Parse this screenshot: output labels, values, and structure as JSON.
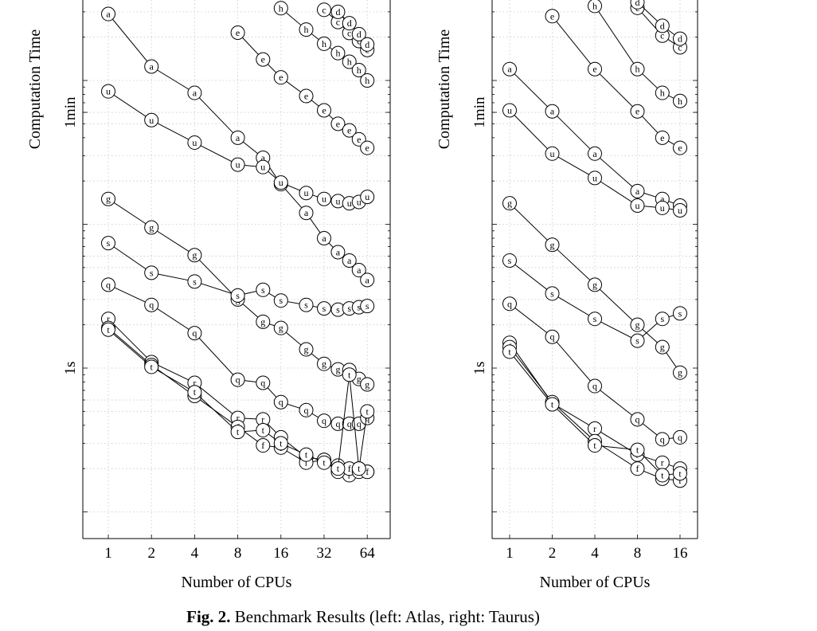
{
  "caption": {
    "label": "Fig. 2.",
    "text": "Benchmark Results (left: Atlas, right: Taurus)"
  },
  "chart_data": [
    {
      "type": "line",
      "panel": "left",
      "xlabel": "Number of CPUs",
      "ylabel": "Computation Time",
      "x_scale": "log2",
      "y_scale": "log",
      "x_ticks": [
        1,
        2,
        4,
        8,
        16,
        32,
        64
      ],
      "y_tick_labels": [
        {
          "value": 60,
          "label": "1min"
        },
        {
          "value": 1,
          "label": "1s"
        }
      ],
      "ylim_seconds": [
        0.1,
        300
      ],
      "grid": true,
      "x": [
        1,
        2,
        4,
        8,
        12,
        16,
        24,
        32,
        40,
        48,
        56,
        64
      ],
      "series": [
        {
          "name": "a",
          "values": [
            290,
            125,
            82,
            40,
            29,
            19,
            12,
            8.0,
            6.4,
            5.6,
            4.8,
            4.1
          ]
        },
        {
          "name": "u",
          "values": [
            84,
            53,
            37,
            26,
            25,
            19.5,
            16.5,
            15,
            14.5,
            14,
            14.3,
            15.5
          ]
        },
        {
          "name": "g",
          "values": [
            15,
            9.5,
            6.1,
            3.0,
            2.1,
            1.9,
            1.35,
            1.07,
            0.98,
            0.97,
            0.84,
            0.77
          ]
        },
        {
          "name": "s",
          "values": [
            7.4,
            4.6,
            4.0,
            3.2,
            3.5,
            2.95,
            2.75,
            2.6,
            2.55,
            2.6,
            2.65,
            2.7
          ]
        },
        {
          "name": "q",
          "values": [
            3.8,
            2.75,
            1.75,
            0.83,
            0.79,
            0.58,
            0.51,
            0.43,
            0.41,
            0.41,
            0.41,
            0.45
          ]
        },
        {
          "name": "r",
          "values": [
            2.2,
            1.1,
            0.79,
            0.45,
            0.44,
            0.33,
            0.24,
            0.23,
            0.21,
            0.18,
            0.2,
            0.19
          ]
        },
        {
          "name": "f",
          "values": [
            1.9,
            1.05,
            0.64,
            0.39,
            0.29,
            0.28,
            0.22,
            0.23,
            0.19,
            0.2,
            0.19,
            0.19
          ]
        },
        {
          "name": "t",
          "values": [
            1.85,
            1.02,
            0.68,
            0.36,
            0.37,
            0.3,
            0.25,
            0.22,
            0.2,
            0.9,
            0.2,
            0.5
          ]
        },
        {
          "name": "e",
          "values": [
            null,
            null,
            null,
            215,
            140,
            105,
            78,
            62,
            50,
            45,
            39,
            34
          ]
        },
        {
          "name": "h",
          "values": [
            null,
            null,
            null,
            null,
            null,
            318,
            226,
            180,
            155,
            135,
            118,
            100
          ]
        },
        {
          "name": "c",
          "values": [
            null,
            null,
            null,
            null,
            null,
            null,
            null,
            310,
            255,
            214,
            188,
            163
          ]
        },
        {
          "name": "d",
          "values": [
            null,
            null,
            null,
            null,
            null,
            null,
            null,
            null,
            300,
            250,
            210,
            178
          ]
        }
      ]
    },
    {
      "type": "line",
      "panel": "right",
      "xlabel": "Number of CPUs",
      "ylabel": "Computation Time",
      "x_scale": "log2",
      "y_scale": "log",
      "x_ticks": [
        1,
        2,
        4,
        8,
        16
      ],
      "y_tick_labels": [
        {
          "value": 60,
          "label": "1min"
        },
        {
          "value": 1,
          "label": "1s"
        }
      ],
      "ylim_seconds": [
        0.1,
        300
      ],
      "grid": true,
      "x": [
        1,
        2,
        4,
        8,
        12,
        16
      ],
      "series": [
        {
          "name": "a",
          "values": [
            120,
            61,
            31,
            17,
            15,
            13.5
          ]
        },
        {
          "name": "u",
          "values": [
            62,
            31,
            21,
            13.5,
            13,
            12.5
          ]
        },
        {
          "name": "g",
          "values": [
            14,
            7.2,
            3.8,
            2.0,
            1.4,
            0.93
          ]
        },
        {
          "name": "s",
          "values": [
            5.6,
            3.3,
            2.2,
            1.55,
            2.2,
            2.4
          ]
        },
        {
          "name": "q",
          "values": [
            2.8,
            1.65,
            0.75,
            0.44,
            0.32,
            0.33
          ]
        },
        {
          "name": "r",
          "values": [
            1.5,
            0.57,
            0.38,
            0.25,
            0.22,
            0.2
          ]
        },
        {
          "name": "f",
          "values": [
            1.4,
            0.58,
            0.31,
            0.2,
            0.17,
            0.165
          ]
        },
        {
          "name": "t",
          "values": [
            1.3,
            0.56,
            0.29,
            0.27,
            0.18,
            0.185
          ]
        },
        {
          "name": "e",
          "values": [
            null,
            280,
            120,
            61,
            40,
            34
          ]
        },
        {
          "name": "h",
          "values": [
            null,
            null,
            330,
            120,
            82,
            72
          ]
        },
        {
          "name": "c",
          "values": [
            null,
            null,
            null,
            320,
            205,
            170
          ]
        },
        {
          "name": "d",
          "values": [
            null,
            null,
            null,
            350,
            240,
            195
          ]
        }
      ]
    }
  ]
}
